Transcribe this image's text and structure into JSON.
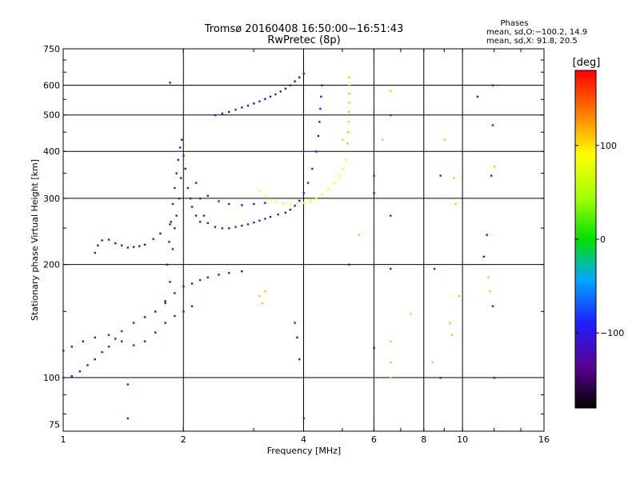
{
  "header": {
    "title_line1": "Tromsø 20160408 16:50:00−16:51:43",
    "title_line2": "RwPretec (8p)"
  },
  "stats": {
    "heading": "Phases",
    "line_o": "mean, sd,O:−100.2, 14.9",
    "line_x": "mean, sd,X:  91.8, 20.5"
  },
  "colorbar": {
    "unit": "[deg]",
    "ticks": [
      {
        "value": 100,
        "label": "100"
      },
      {
        "value": 0,
        "label": "0"
      },
      {
        "value": -100,
        "label": "−100"
      }
    ]
  },
  "chart_data": {
    "type": "scatter",
    "xlabel": "Frequency [MHz]",
    "ylabel": "Stationary phase Virtual Height [km]",
    "x_scale": "log",
    "y_scale": "log",
    "xlim": [
      1,
      16
    ],
    "ylim": [
      72,
      750
    ],
    "grid": true,
    "x_ticks": [
      1,
      2,
      4,
      6,
      8,
      10,
      16
    ],
    "x_tick_labels": [
      "1",
      "2",
      "4",
      "6",
      "8",
      "10",
      "16"
    ],
    "y_ticks": [
      75,
      100,
      200,
      300,
      400,
      500,
      600,
      750
    ],
    "y_tick_labels": [
      "75",
      "100",
      "200",
      "300",
      "400",
      "500",
      "600",
      "750"
    ],
    "color_scale_deg": [
      -180,
      180
    ],
    "traces": [
      {
        "trace": "low-o-branch",
        "phase": -110,
        "points": [
          [
            1.0,
            100
          ],
          [
            1.05,
            101
          ],
          [
            1.1,
            104
          ],
          [
            1.15,
            108
          ],
          [
            1.2,
            112
          ],
          [
            1.25,
            117
          ],
          [
            1.3,
            121
          ],
          [
            1.35,
            127
          ],
          [
            1.4,
            133
          ],
          [
            1.5,
            140
          ],
          [
            1.6,
            145
          ],
          [
            1.7,
            150
          ],
          [
            1.8,
            158
          ],
          [
            1.9,
            168
          ],
          [
            2.0,
            175
          ],
          [
            2.1,
            178
          ],
          [
            2.2,
            182
          ],
          [
            2.3,
            185
          ],
          [
            2.45,
            188
          ],
          [
            2.6,
            190
          ],
          [
            2.8,
            192
          ]
        ]
      },
      {
        "trace": "lower-echo-branch",
        "phase": -105,
        "points": [
          [
            1.0,
            118
          ],
          [
            1.05,
            121
          ],
          [
            1.12,
            125
          ],
          [
            1.2,
            128
          ],
          [
            1.3,
            130
          ],
          [
            1.4,
            125
          ],
          [
            1.5,
            122
          ],
          [
            1.6,
            125
          ],
          [
            1.7,
            132
          ],
          [
            1.8,
            140
          ],
          [
            1.9,
            146
          ],
          [
            2.0,
            150
          ],
          [
            2.1,
            155
          ]
        ]
      },
      {
        "trace": "e-layer-trace",
        "phase": -110,
        "points": [
          [
            1.2,
            215
          ],
          [
            1.22,
            225
          ],
          [
            1.25,
            232
          ],
          [
            1.3,
            233
          ],
          [
            1.35,
            228
          ],
          [
            1.4,
            225
          ],
          [
            1.45,
            222
          ],
          [
            1.5,
            223
          ],
          [
            1.55,
            224
          ],
          [
            1.6,
            226
          ],
          [
            1.68,
            234
          ],
          [
            1.75,
            242
          ],
          [
            1.85,
            256
          ]
        ]
      },
      {
        "trace": "f1-cusp-cloud",
        "phase": -105,
        "points": [
          [
            1.8,
            160
          ],
          [
            1.82,
            200
          ],
          [
            1.84,
            230
          ],
          [
            1.86,
            260
          ],
          [
            1.88,
            290
          ],
          [
            1.9,
            320
          ],
          [
            1.92,
            350
          ],
          [
            1.94,
            380
          ],
          [
            1.96,
            410
          ],
          [
            1.98,
            430
          ],
          [
            1.85,
            180
          ],
          [
            1.9,
            250
          ],
          [
            1.95,
            300
          ],
          [
            1.88,
            220
          ],
          [
            1.92,
            270
          ],
          [
            1.97,
            340
          ],
          [
            2.0,
            390
          ],
          [
            2.02,
            360
          ],
          [
            2.05,
            320
          ],
          [
            2.08,
            300
          ],
          [
            2.1,
            285
          ],
          [
            2.15,
            270
          ],
          [
            2.2,
            260
          ]
        ]
      },
      {
        "trace": "f2-o-trace",
        "phase": -100,
        "points": [
          [
            2.2,
            300
          ],
          [
            2.25,
            270
          ],
          [
            2.3,
            258
          ],
          [
            2.4,
            252
          ],
          [
            2.5,
            250
          ],
          [
            2.6,
            250
          ],
          [
            2.7,
            252
          ],
          [
            2.8,
            254
          ],
          [
            2.9,
            256
          ],
          [
            3.0,
            259
          ],
          [
            3.1,
            262
          ],
          [
            3.2,
            265
          ],
          [
            3.3,
            268
          ],
          [
            3.45,
            272
          ],
          [
            3.6,
            275
          ],
          [
            3.7,
            280
          ],
          [
            3.8,
            287
          ],
          [
            3.9,
            296
          ],
          [
            4.0,
            310
          ],
          [
            4.1,
            330
          ],
          [
            4.2,
            360
          ],
          [
            4.3,
            400
          ],
          [
            4.35,
            440
          ],
          [
            4.38,
            480
          ],
          [
            4.4,
            520
          ],
          [
            4.42,
            560
          ],
          [
            4.44,
            600
          ]
        ]
      },
      {
        "trace": "f2-o-echo",
        "phase": -100,
        "points": [
          [
            2.15,
            330
          ],
          [
            2.3,
            305
          ],
          [
            2.45,
            295
          ],
          [
            2.6,
            290
          ],
          [
            2.8,
            288
          ],
          [
            3.0,
            290
          ],
          [
            3.2,
            292
          ]
        ]
      },
      {
        "trace": "f2-x-trace",
        "phase": 90,
        "points": [
          [
            3.1,
            315
          ],
          [
            3.2,
            305
          ],
          [
            3.3,
            298
          ],
          [
            3.4,
            294
          ],
          [
            3.55,
            291
          ],
          [
            3.7,
            290
          ],
          [
            3.85,
            291
          ],
          [
            4.0,
            292
          ],
          [
            4.15,
            295
          ],
          [
            4.3,
            300
          ],
          [
            4.45,
            308
          ],
          [
            4.6,
            318
          ],
          [
            4.75,
            330
          ],
          [
            4.9,
            345
          ],
          [
            5.0,
            360
          ],
          [
            5.1,
            380
          ]
        ]
      },
      {
        "trace": "f2-x-cusp",
        "phase": 110,
        "points": [
          [
            5.15,
            420
          ],
          [
            5.17,
            450
          ],
          [
            5.18,
            480
          ],
          [
            5.19,
            510
          ],
          [
            5.2,
            540
          ],
          [
            5.2,
            570
          ],
          [
            5.2,
            600
          ],
          [
            5.2,
            630
          ]
        ]
      },
      {
        "trace": "second-hop-o",
        "phase": -115,
        "points": [
          [
            2.4,
            500
          ],
          [
            2.5,
            505
          ],
          [
            2.6,
            510
          ],
          [
            2.7,
            517
          ],
          [
            2.8,
            524
          ],
          [
            2.9,
            530
          ],
          [
            3.0,
            537
          ],
          [
            3.1,
            544
          ],
          [
            3.2,
            552
          ],
          [
            3.3,
            560
          ],
          [
            3.4,
            568
          ],
          [
            3.5,
            578
          ],
          [
            3.6,
            588
          ],
          [
            3.7,
            600
          ],
          [
            3.8,
            615
          ],
          [
            3.9,
            630
          ],
          [
            4.0,
            645
          ]
        ]
      },
      {
        "trace": "scattered-noise",
        "phase": -95,
        "points": [
          [
            1.85,
            610
          ],
          [
            1.45,
            96
          ],
          [
            1.45,
            78
          ],
          [
            3.8,
            140
          ],
          [
            3.85,
            128
          ],
          [
            3.9,
            112
          ],
          [
            4.0,
            78
          ],
          [
            5.2,
            200
          ],
          [
            6.0,
            345
          ],
          [
            6.0,
            310
          ],
          [
            6.0,
            120
          ],
          [
            6.6,
            270
          ],
          [
            6.6,
            195
          ],
          [
            6.6,
            500
          ],
          [
            8.5,
            195
          ],
          [
            8.8,
            100
          ],
          [
            8.8,
            345
          ],
          [
            10.9,
            560
          ],
          [
            11.3,
            210
          ],
          [
            11.5,
            240
          ],
          [
            11.8,
            345
          ],
          [
            11.9,
            600
          ],
          [
            11.9,
            470
          ],
          [
            11.9,
            155
          ],
          [
            12.0,
            100
          ]
        ]
      },
      {
        "trace": "scattered-x",
        "phase": 110,
        "points": [
          [
            3.1,
            165
          ],
          [
            3.15,
            158
          ],
          [
            3.2,
            170
          ],
          [
            5.0,
            430
          ],
          [
            5.5,
            240
          ],
          [
            6.3,
            430
          ],
          [
            6.6,
            580
          ],
          [
            6.6,
            125
          ],
          [
            6.6,
            110
          ],
          [
            6.6,
            100
          ],
          [
            7.4,
            148
          ],
          [
            8.4,
            110
          ],
          [
            9.0,
            430
          ],
          [
            9.3,
            140
          ],
          [
            9.4,
            130
          ],
          [
            9.5,
            340
          ],
          [
            9.6,
            290
          ],
          [
            9.8,
            165
          ],
          [
            11.6,
            185
          ],
          [
            11.7,
            170
          ],
          [
            12.0,
            365
          ]
        ]
      }
    ]
  }
}
